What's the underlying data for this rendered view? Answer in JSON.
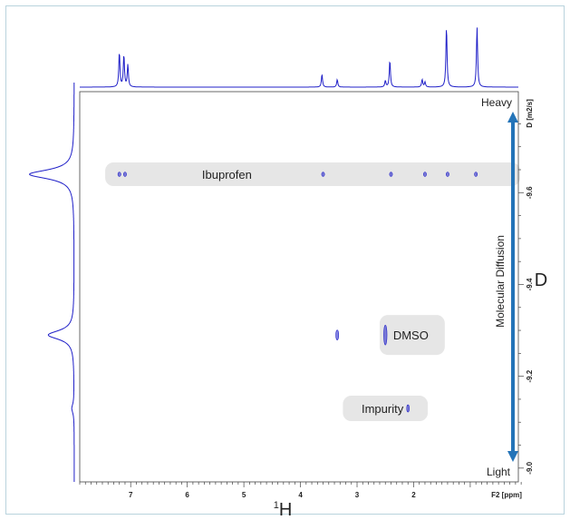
{
  "chart_data": {
    "type": "scatter",
    "subtype": "2D DOSY NMR contour plot",
    "x_axis": {
      "title": "1H",
      "units_label": "F2 [ppm]",
      "ticks": [
        "7",
        "6",
        "5",
        "4",
        "3",
        "2"
      ],
      "reversed": true,
      "range": [
        7.9,
        0.15
      ]
    },
    "y_axis": {
      "units_label": "D [m2/s]",
      "ticks": [
        "-9.0",
        "-9.2",
        "-9.4",
        "-9.6"
      ],
      "range": [
        -8.97,
        -9.82
      ]
    },
    "right_label": "D",
    "arrow_label": "Molecular Diffusion",
    "arrow_top_label": "Heavy",
    "arrow_bottom_label": "Light",
    "groups": [
      {
        "name": "Ibuprofen",
        "logD": -9.64,
        "peaks_ppm": [
          7.2,
          7.1,
          3.6,
          2.4,
          1.8,
          1.4,
          0.9
        ]
      },
      {
        "name": "DMSO",
        "logD": -9.29,
        "peaks_ppm": [
          3.35,
          2.5
        ]
      },
      {
        "name": "Impurity",
        "logD": -9.13,
        "peaks_ppm": [
          2.1
        ]
      }
    ],
    "f2_projection_peaks": [
      {
        "ppm": 7.2,
        "height": 0.55
      },
      {
        "ppm": 7.12,
        "height": 0.5
      },
      {
        "ppm": 7.05,
        "height": 0.35
      },
      {
        "ppm": 3.62,
        "height": 0.2
      },
      {
        "ppm": 3.35,
        "height": 0.12
      },
      {
        "ppm": 2.5,
        "height": 0.1
      },
      {
        "ppm": 2.42,
        "height": 0.42
      },
      {
        "ppm": 1.85,
        "height": 0.12
      },
      {
        "ppm": 1.8,
        "height": 0.08
      },
      {
        "ppm": 1.42,
        "height": 0.95
      },
      {
        "ppm": 0.88,
        "height": 0.95
      }
    ],
    "f1_projection_peaks": [
      {
        "logD": -9.64,
        "height": 0.95
      },
      {
        "logD": -9.29,
        "height": 0.55
      },
      {
        "logD": -9.13,
        "height": 0.05
      }
    ],
    "colors": {
      "contour": "#2020c8",
      "arrow": "#2474b8",
      "group_box": "#e6e6e6"
    }
  }
}
